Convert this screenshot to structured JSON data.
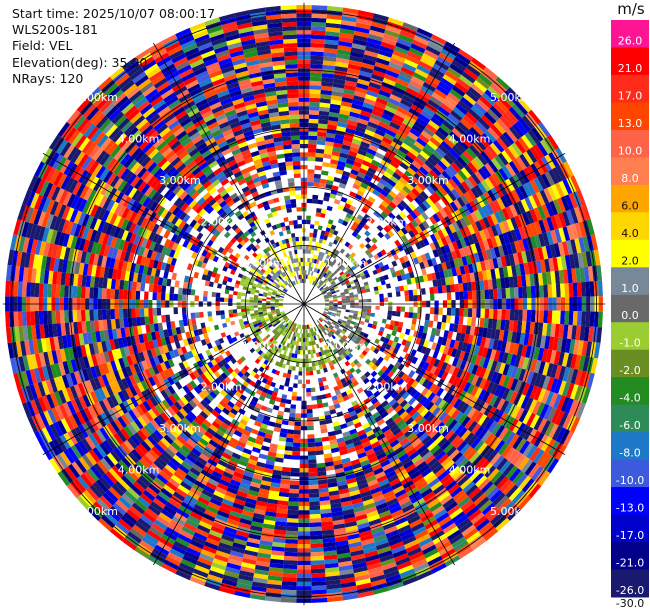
{
  "info": {
    "start_time": "Start time: 2025/10/07 08:00:17",
    "site": "WLS200s-181",
    "field": "Field: VEL",
    "elevation": "Elevation(deg): 35.00",
    "nrays": "NRays: 120"
  },
  "colorbar": {
    "unit": "m/s",
    "levels": [
      {
        "label": "26.0",
        "color": "#ff1493"
      },
      {
        "label": "21.0",
        "color": "#ff0000"
      },
      {
        "label": "17.0",
        "color": "#ff2a1a"
      },
      {
        "label": "13.0",
        "color": "#ff4500"
      },
      {
        "label": "10.0",
        "color": "#ff6347"
      },
      {
        "label": "8.0",
        "color": "#ff7f50"
      },
      {
        "label": "6.0",
        "color": "#ffa500"
      },
      {
        "label": "4.0",
        "color": "#ffd700"
      },
      {
        "label": "2.0",
        "color": "#ffff00"
      },
      {
        "label": "1.0",
        "color": "#778899"
      },
      {
        "label": "0.0",
        "color": "#696969"
      },
      {
        "label": "-1.0",
        "color": "#9acd32"
      },
      {
        "label": "-2.0",
        "color": "#6b8e23"
      },
      {
        "label": "-4.0",
        "color": "#228b22"
      },
      {
        "label": "-6.0",
        "color": "#2e8b57"
      },
      {
        "label": "-8.0",
        "color": "#1e78c8"
      },
      {
        "label": "-10.0",
        "color": "#3c5adc"
      },
      {
        "label": "-13.0",
        "color": "#0000ff"
      },
      {
        "label": "-17.0",
        "color": "#0000cd"
      },
      {
        "label": "-21.0",
        "color": "#00008b"
      },
      {
        "label": "-26.0",
        "color": "#191970"
      }
    ],
    "bottom_label": "-30.0"
  },
  "chart_data": {
    "type": "heatmap",
    "projection": "polar PPI",
    "field": "VEL",
    "units": "m/s",
    "elevation_deg": 35.0,
    "nrays": 120,
    "range_rings_km": [
      1.0,
      2.0,
      3.0,
      4.0,
      5.0
    ],
    "ring_labels": [
      "1.00km",
      "2.00km",
      "3.00km",
      "4.00km",
      "5.00km"
    ],
    "max_range_km": 5.15,
    "azimuth_spokes_deg": [
      0,
      30,
      60,
      90,
      120,
      150,
      180,
      210,
      240,
      270,
      300,
      330
    ],
    "ring_label_azimuths_deg": [
      45,
      135,
      225,
      315
    ],
    "near_field": {
      "max_km": 1.2,
      "sectors": [
        {
          "az_from": 300,
          "az_to": 30,
          "dominant_vel": 2.0
        },
        {
          "az_from": 30,
          "az_to": 150,
          "dominant_vel": 0.5
        },
        {
          "az_from": 150,
          "az_to": 200,
          "dominant_vel": -1.0
        },
        {
          "az_from": 200,
          "az_to": 300,
          "dominant_vel": -1.0
        }
      ]
    },
    "far_field": "noisy velocities spanning -30.0 to 26.0 m/s"
  }
}
